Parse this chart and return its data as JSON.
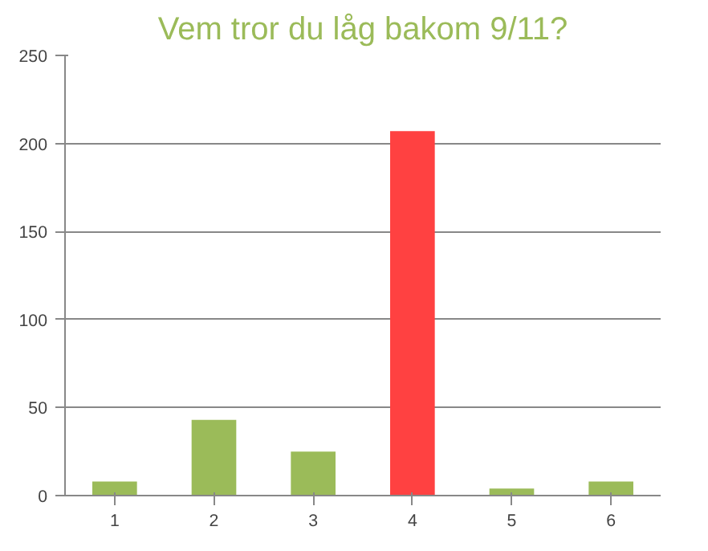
{
  "chart_data": {
    "type": "bar",
    "title": "Vem tror du låg bakom 9/11?",
    "categories": [
      "1",
      "2",
      "3",
      "4",
      "5",
      "6"
    ],
    "values": [
      8,
      43,
      25,
      207,
      4,
      8
    ],
    "colors": [
      "#9bbb59",
      "#9bbb59",
      "#9bbb59",
      "#ff4141",
      "#9bbb59",
      "#9bbb59"
    ],
    "ylim": [
      0,
      250
    ],
    "yticks": [
      0,
      50,
      100,
      150,
      200,
      250
    ],
    "grid": "y"
  }
}
